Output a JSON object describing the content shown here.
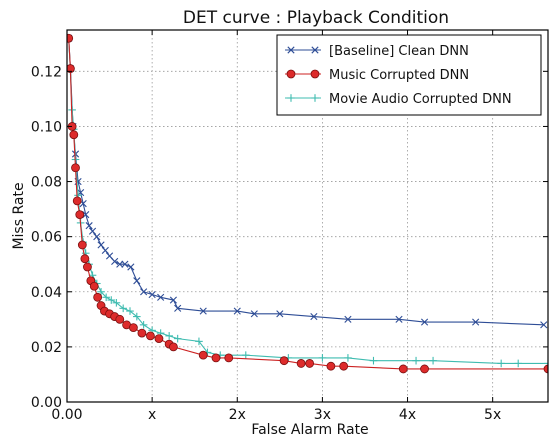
{
  "chart_data": {
    "type": "line",
    "title": "DET curve  :  Playback Condition",
    "xlabel": "False Alarm Rate",
    "ylabel": "Miss Rate",
    "xlim": [
      0,
      5.65
    ],
    "ylim": [
      0,
      0.135
    ],
    "x_ticks": [
      {
        "value": 0,
        "label": "0.00"
      },
      {
        "value": 1,
        "label": "x"
      },
      {
        "value": 2,
        "label": "2x"
      },
      {
        "value": 3,
        "label": "3x"
      },
      {
        "value": 4,
        "label": "4x"
      },
      {
        "value": 5,
        "label": "5x"
      }
    ],
    "y_ticks": [
      {
        "value": 0.0,
        "label": "0.00"
      },
      {
        "value": 0.02,
        "label": "0.02"
      },
      {
        "value": 0.04,
        "label": "0.04"
      },
      {
        "value": 0.06,
        "label": "0.06"
      },
      {
        "value": 0.08,
        "label": "0.08"
      },
      {
        "value": 0.1,
        "label": "0.10"
      },
      {
        "value": 0.12,
        "label": "0.12"
      }
    ],
    "grid": true,
    "legend_position": "top-right",
    "series": [
      {
        "name": "[Baseline]  Clean  DNN",
        "color": "#2e4d96",
        "marker": "x",
        "points": [
          [
            0.02,
            0.132
          ],
          [
            0.04,
            0.121
          ],
          [
            0.07,
            0.1
          ],
          [
            0.1,
            0.09
          ],
          [
            0.13,
            0.08
          ],
          [
            0.16,
            0.076
          ],
          [
            0.19,
            0.072
          ],
          [
            0.22,
            0.068
          ],
          [
            0.26,
            0.064
          ],
          [
            0.3,
            0.062
          ],
          [
            0.35,
            0.06
          ],
          [
            0.4,
            0.057
          ],
          [
            0.45,
            0.055
          ],
          [
            0.5,
            0.053
          ],
          [
            0.56,
            0.051
          ],
          [
            0.62,
            0.05
          ],
          [
            0.68,
            0.05
          ],
          [
            0.75,
            0.049
          ],
          [
            0.82,
            0.044
          ],
          [
            0.9,
            0.04
          ],
          [
            1.0,
            0.039
          ],
          [
            1.1,
            0.038
          ],
          [
            1.25,
            0.037
          ],
          [
            1.3,
            0.034
          ],
          [
            1.6,
            0.033
          ],
          [
            2.0,
            0.033
          ],
          [
            2.2,
            0.032
          ],
          [
            2.5,
            0.032
          ],
          [
            2.9,
            0.031
          ],
          [
            3.3,
            0.03
          ],
          [
            3.9,
            0.03
          ],
          [
            4.2,
            0.029
          ],
          [
            4.8,
            0.029
          ],
          [
            5.6,
            0.028
          ]
        ]
      },
      {
        "name": "Music Corrupted DNN",
        "color": "#cc2222",
        "marker": "o",
        "points": [
          [
            0.02,
            0.132
          ],
          [
            0.04,
            0.121
          ],
          [
            0.06,
            0.1
          ],
          [
            0.08,
            0.097
          ],
          [
            0.1,
            0.085
          ],
          [
            0.12,
            0.073
          ],
          [
            0.15,
            0.068
          ],
          [
            0.18,
            0.057
          ],
          [
            0.21,
            0.052
          ],
          [
            0.24,
            0.049
          ],
          [
            0.28,
            0.044
          ],
          [
            0.32,
            0.042
          ],
          [
            0.36,
            0.038
          ],
          [
            0.4,
            0.035
          ],
          [
            0.44,
            0.033
          ],
          [
            0.5,
            0.032
          ],
          [
            0.56,
            0.031
          ],
          [
            0.62,
            0.03
          ],
          [
            0.7,
            0.028
          ],
          [
            0.78,
            0.027
          ],
          [
            0.88,
            0.025
          ],
          [
            0.98,
            0.024
          ],
          [
            1.08,
            0.023
          ],
          [
            1.2,
            0.021
          ],
          [
            1.25,
            0.02
          ],
          [
            1.6,
            0.017
          ],
          [
            1.75,
            0.016
          ],
          [
            1.9,
            0.016
          ],
          [
            2.55,
            0.015
          ],
          [
            2.75,
            0.014
          ],
          [
            2.85,
            0.014
          ],
          [
            3.1,
            0.013
          ],
          [
            3.25,
            0.013
          ],
          [
            3.95,
            0.012
          ],
          [
            4.2,
            0.012
          ],
          [
            5.65,
            0.012
          ]
        ]
      },
      {
        "name": "Movie Audio Corrupted DNN",
        "color": "#3fbcb0",
        "marker": "+",
        "points": [
          [
            0.02,
            0.132
          ],
          [
            0.04,
            0.12
          ],
          [
            0.06,
            0.106
          ],
          [
            0.08,
            0.099
          ],
          [
            0.1,
            0.088
          ],
          [
            0.13,
            0.075
          ],
          [
            0.16,
            0.065
          ],
          [
            0.19,
            0.058
          ],
          [
            0.22,
            0.054
          ],
          [
            0.26,
            0.05
          ],
          [
            0.3,
            0.046
          ],
          [
            0.35,
            0.043
          ],
          [
            0.4,
            0.04
          ],
          [
            0.46,
            0.038
          ],
          [
            0.52,
            0.037
          ],
          [
            0.58,
            0.036
          ],
          [
            0.66,
            0.034
          ],
          [
            0.74,
            0.033
          ],
          [
            0.82,
            0.031
          ],
          [
            0.9,
            0.028
          ],
          [
            1.0,
            0.026
          ],
          [
            1.1,
            0.025
          ],
          [
            1.2,
            0.024
          ],
          [
            1.3,
            0.023
          ],
          [
            1.55,
            0.022
          ],
          [
            1.65,
            0.018
          ],
          [
            1.8,
            0.017
          ],
          [
            2.1,
            0.017
          ],
          [
            2.6,
            0.016
          ],
          [
            3.0,
            0.016
          ],
          [
            3.3,
            0.016
          ],
          [
            3.6,
            0.015
          ],
          [
            4.1,
            0.015
          ],
          [
            4.3,
            0.015
          ],
          [
            5.1,
            0.014
          ],
          [
            5.3,
            0.014
          ],
          [
            5.65,
            0.014
          ]
        ]
      }
    ]
  }
}
